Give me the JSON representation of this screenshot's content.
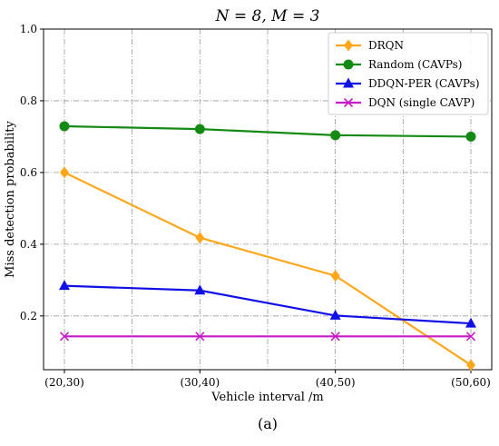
{
  "chart_data": {
    "type": "line",
    "title": "N = 8, M = 3",
    "xlabel": "Vehicle interval /m",
    "ylabel": "Miss detection probability",
    "categories": [
      "(20,30)",
      "(30,40)",
      "(40,50)",
      "(50,60)"
    ],
    "ylim": [
      0.05,
      1.0
    ],
    "yticks": [
      "0.2",
      "0.4",
      "0.6",
      "0.8",
      "1.0"
    ],
    "grid": true,
    "legend_position": "top-right",
    "series": [
      {
        "name": "DRQN",
        "color": "#FFA61A",
        "marker": "diamond",
        "values": [
          0.6,
          0.418,
          0.312,
          0.063
        ]
      },
      {
        "name": "Random (CAVPs)",
        "color": "#138A13",
        "marker": "circle",
        "values": [
          0.729,
          0.721,
          0.704,
          0.7
        ]
      },
      {
        "name": "DDQN-PER (CAVPs)",
        "color": "#1010E6",
        "marker": "triangle",
        "values": [
          0.284,
          0.271,
          0.201,
          0.179
        ]
      },
      {
        "name": "DQN (single CAVP)",
        "color": "#C61AC6",
        "marker": "x",
        "values": [
          0.143,
          0.143,
          0.143,
          0.143
        ]
      }
    ]
  },
  "caption": "(a)"
}
